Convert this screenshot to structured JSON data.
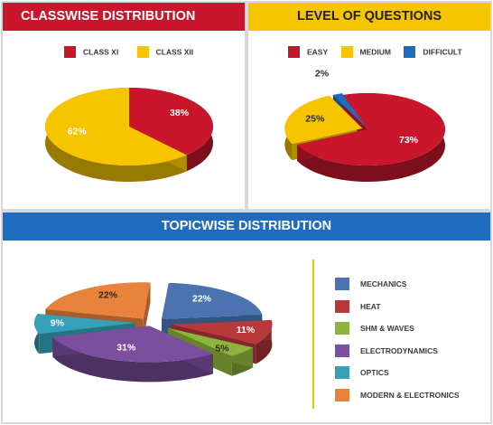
{
  "chart_data": [
    {
      "type": "pie",
      "title": "CLASSWISE DISTRIBUTION",
      "categories": [
        "CLASS XI",
        "CLASS XII"
      ],
      "values": [
        38,
        62
      ],
      "labels": [
        "38%",
        "62%"
      ],
      "colors": [
        "#c9162d",
        "#f7c400"
      ],
      "legend": "top"
    },
    {
      "type": "pie",
      "title": "LEVEL OF QUESTIONS",
      "categories": [
        "EASY",
        "MEDIUM",
        "DIFFICULT"
      ],
      "values": [
        73,
        25,
        2
      ],
      "labels": [
        "73%",
        "25%",
        "2%"
      ],
      "colors": [
        "#c9162d",
        "#f7c400",
        "#1f6bbf"
      ],
      "legend": "top"
    },
    {
      "type": "pie",
      "title": "TOPICWISE DISTRIBUTION",
      "categories": [
        "MECHANICS",
        "HEAT",
        "SHM & WAVES",
        "ELECTRODYNAMICS",
        "OPTICS",
        "MODERN & ELECTRONICS"
      ],
      "values": [
        22,
        11,
        5,
        31,
        9,
        22
      ],
      "labels": [
        "22%",
        "11%",
        "5%",
        "31%",
        "9%",
        "22%"
      ],
      "colors": [
        "#4a73b0",
        "#b8383c",
        "#8db43c",
        "#7a4f9e",
        "#35a0b8",
        "#e9823a"
      ],
      "legend": "right"
    }
  ]
}
